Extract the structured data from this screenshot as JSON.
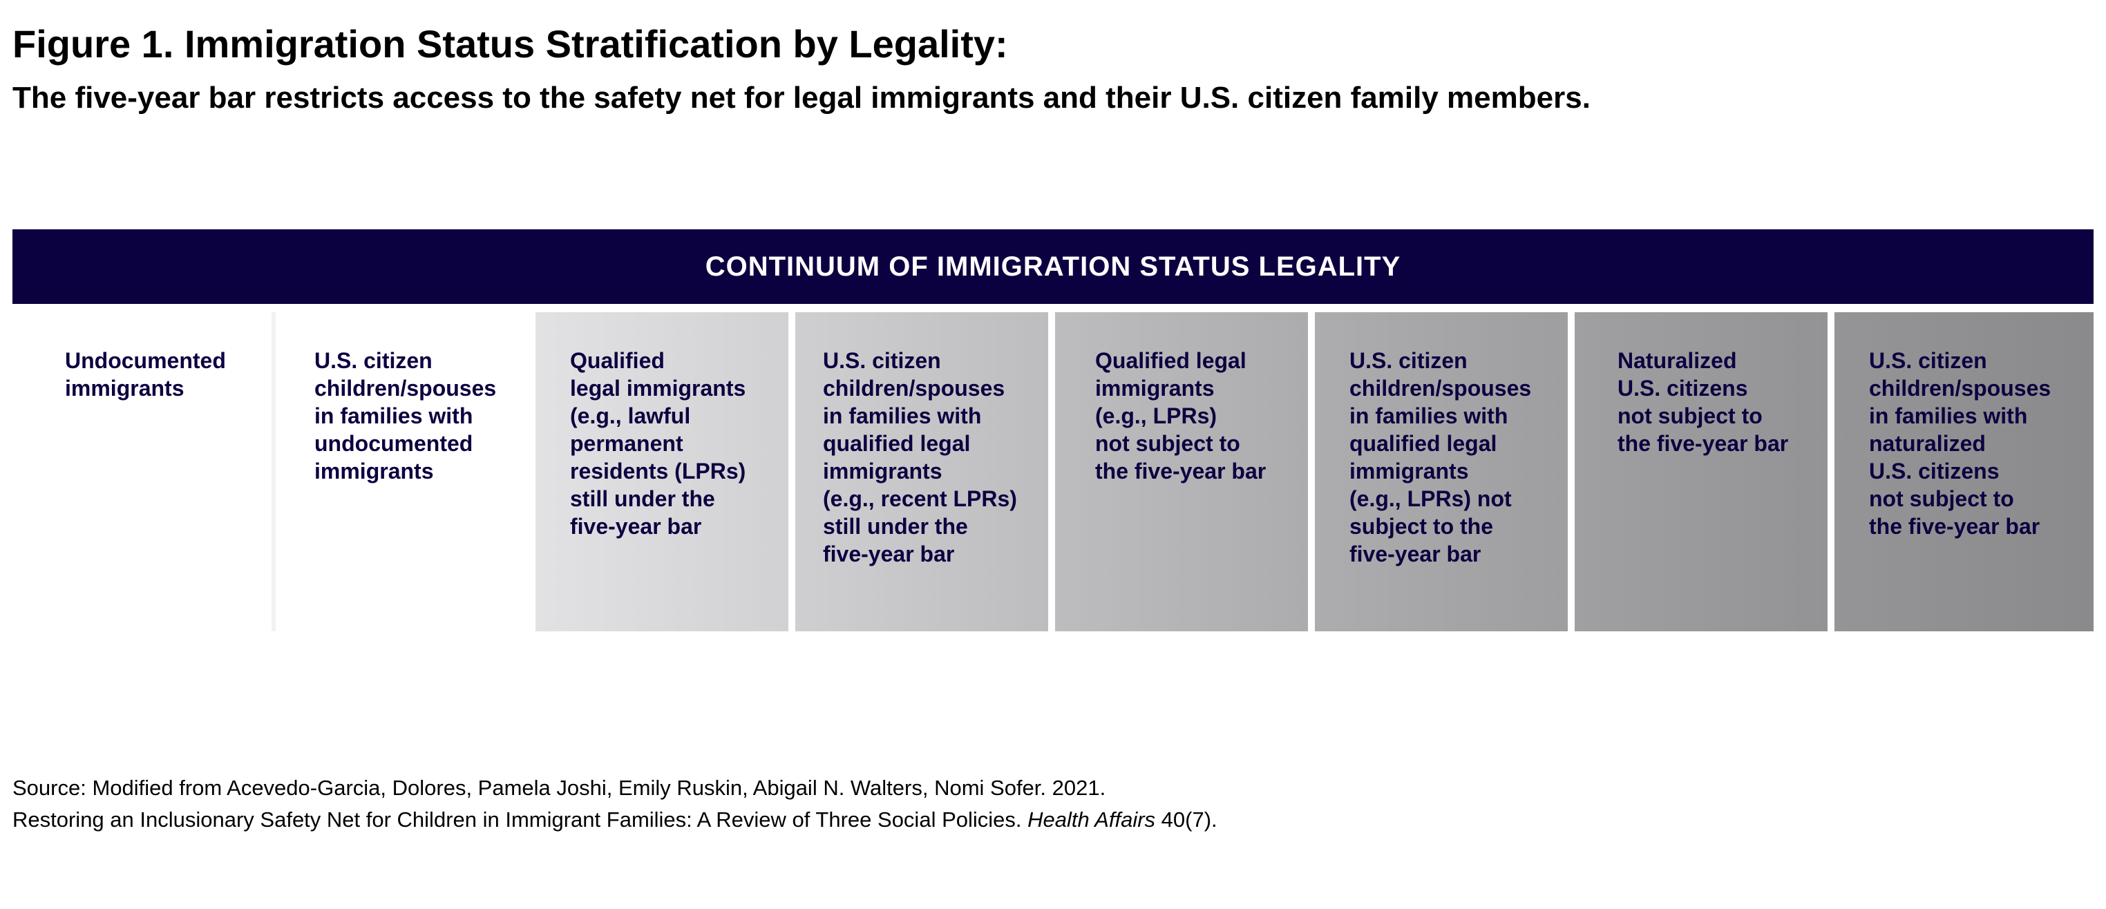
{
  "title": "Figure 1. Immigration Status Stratification by Legality:",
  "subtitle": "The five-year bar restricts access to the safety net for legal immigrants and their U.S. citizen family members.",
  "banner": "CONTINUUM OF IMMIGRATION STATUS LEGALITY",
  "categories": [
    "Undocumented\nimmigrants",
    "U.S. citizen\nchildren/spouses\nin families with\nundocumented\nimmigrants",
    "Qualified\nlegal immigrants\n(e.g., lawful\npermanent\nresidents (LPRs)\nstill under the\nfive-year bar",
    "U.S. citizen\nchildren/spouses\nin families with\nqualified legal\nimmigrants\n(e.g., recent LPRs)\nstill under the\nfive-year bar",
    "Qualified legal\nimmigrants\n(e.g., LPRs)\nnot subject to\nthe five-year bar",
    "U.S. citizen\nchildren/spouses\nin families with\nqualified legal\nimmigrants\n(e.g., LPRs) not\nsubject to the\nfive-year bar",
    "Naturalized\nU.S. citizens\nnot subject to\nthe five-year bar",
    "U.S. citizen\nchildren/spouses\nin families with\nnaturalized\nU.S. citizens\nnot subject to\nthe five-year bar"
  ],
  "source": {
    "line1": "Source: Modified from Acevedo-Garcia, Dolores, Pamela Joshi, Emily Ruskin, Abigail N. Walters, Nomi Sofer. 2021.",
    "line2_before": "Restoring an Inclusionary Safety Net for Children in Immigrant Families: A Review of Three Social Policies. ",
    "line2_journal": "Health Affairs",
    "line2_after": " 40(7)."
  },
  "colors": {
    "banner": "#0c0140",
    "label_text": "#0c0140",
    "gradient_start": "#e2e2e4",
    "gradient_end": "#8c8c8c"
  }
}
